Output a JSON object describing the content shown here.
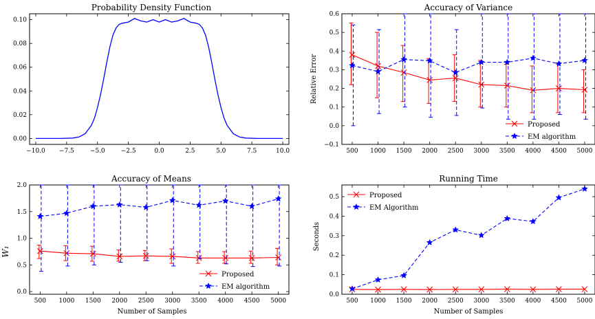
{
  "chart_data": [
    {
      "type": "line",
      "title": "Probability Density Function",
      "xlabel": "",
      "ylabel": "",
      "xlim": [
        -10.5,
        10.5
      ],
      "ylim": [
        -0.005,
        0.105
      ],
      "xticks": [
        -10.0,
        -7.5,
        -5.0,
        -2.5,
        0.0,
        2.5,
        5.0,
        7.5,
        10.0
      ],
      "xtick_labels": [
        "−10.0",
        "−7.5",
        "−5.0",
        "−2.5",
        "0.0",
        "2.5",
        "5.0",
        "7.5",
        "10.0"
      ],
      "yticks": [
        0.0,
        0.02,
        0.04,
        0.06,
        0.08,
        0.1
      ],
      "ytick_labels": [
        "0.00",
        "0.02",
        "0.04",
        "0.06",
        "0.08",
        "0.10"
      ],
      "grid": false,
      "series": [
        {
          "color": "#0000ff",
          "x": [
            -10.0,
            -8.0,
            -7.0,
            -6.5,
            -6.0,
            -5.5,
            -5.25,
            -5.0,
            -4.75,
            -4.5,
            -4.25,
            -4.0,
            -3.75,
            -3.5,
            -3.25,
            -3.0,
            -2.5,
            -2.0,
            -1.5,
            -1.0,
            -0.5,
            0.0,
            0.5,
            1.0,
            1.5,
            2.0,
            2.5,
            3.0,
            3.25,
            3.5,
            3.75,
            4.0,
            4.25,
            4.5,
            4.75,
            5.0,
            5.25,
            5.5,
            6.0,
            6.5,
            7.0,
            8.0,
            10.0
          ],
          "values": [
            0.0,
            0.0,
            0.0003,
            0.0012,
            0.004,
            0.011,
            0.017,
            0.026,
            0.037,
            0.05,
            0.064,
            0.077,
            0.087,
            0.093,
            0.096,
            0.097,
            0.098,
            0.101,
            0.099,
            0.098,
            0.1,
            0.098,
            0.1,
            0.098,
            0.099,
            0.101,
            0.098,
            0.097,
            0.096,
            0.093,
            0.087,
            0.077,
            0.064,
            0.05,
            0.037,
            0.026,
            0.017,
            0.011,
            0.004,
            0.0012,
            0.0003,
            0.0,
            0.0
          ]
        }
      ]
    },
    {
      "type": "line",
      "title": "Accuracy of Variance",
      "xlabel": "",
      "ylabel": "Relative Error",
      "categories": [
        500,
        1000,
        1500,
        2000,
        2500,
        3000,
        3500,
        4000,
        4500,
        5000
      ],
      "xlim": [
        300,
        5200
      ],
      "ylim": [
        -0.1,
        0.6
      ],
      "yticks": [
        -0.1,
        0.0,
        0.1,
        0.2,
        0.3,
        0.4,
        0.5,
        0.6
      ],
      "ytick_labels": [
        "−0.1",
        "0.0",
        "0.1",
        "0.2",
        "0.3",
        "0.4",
        "0.5",
        "0.6"
      ],
      "legend": "bottom-right",
      "grid": false,
      "series": [
        {
          "name": "Proposed",
          "color": "#ff0000",
          "values": [
            0.38,
            0.32,
            0.285,
            0.245,
            0.255,
            0.22,
            0.215,
            0.19,
            0.2,
            0.193
          ],
          "err_low": [
            0.22,
            0.15,
            0.13,
            0.12,
            0.13,
            0.1,
            0.1,
            0.07,
            0.07,
            0.07
          ],
          "err_high": [
            0.55,
            0.5,
            0.43,
            0.36,
            0.38,
            0.35,
            0.33,
            0.32,
            0.33,
            0.3
          ]
        },
        {
          "name": "EM algorithm",
          "color": "#0000ff",
          "values": [
            0.323,
            0.29,
            0.355,
            0.348,
            0.285,
            0.34,
            0.34,
            0.362,
            0.332,
            0.35
          ],
          "err_low": [
            0.0,
            0.065,
            0.1,
            0.045,
            0.055,
            0.095,
            0.035,
            0.035,
            0.06,
            0.035
          ],
          "err_high": [
            0.54,
            0.515,
            0.6,
            0.6,
            0.515,
            0.6,
            0.6,
            0.6,
            0.6,
            0.6
          ]
        }
      ]
    },
    {
      "type": "line",
      "title": "Accuracy of Means",
      "xlabel": "Number of Samples",
      "ylabel": "W₁",
      "categories": [
        500,
        1000,
        1500,
        2000,
        2500,
        3000,
        3500,
        4000,
        4500,
        5000
      ],
      "xlim": [
        300,
        5200
      ],
      "ylim": [
        -0.05,
        2.0
      ],
      "yticks": [
        0.0,
        0.5,
        1.0,
        1.5,
        2.0
      ],
      "ytick_labels": [
        "0.0",
        "0.5",
        "1.0",
        "1.5",
        "2.0"
      ],
      "legend": "bottom-right",
      "grid": false,
      "series": [
        {
          "name": "Proposed",
          "color": "#ff0000",
          "values": [
            0.76,
            0.72,
            0.71,
            0.66,
            0.67,
            0.66,
            0.63,
            0.63,
            0.63,
            0.64
          ],
          "err_low": [
            0.62,
            0.58,
            0.57,
            0.57,
            0.58,
            0.53,
            0.53,
            0.53,
            0.53,
            0.5
          ],
          "err_high": [
            0.87,
            0.86,
            0.85,
            0.78,
            0.77,
            0.8,
            0.75,
            0.75,
            0.76,
            0.81
          ]
        },
        {
          "name": "EM algorithm",
          "color": "#0000ff",
          "values": [
            1.41,
            1.47,
            1.6,
            1.63,
            1.58,
            1.71,
            1.62,
            1.7,
            1.6,
            1.74
          ],
          "err_low": [
            0.38,
            0.48,
            0.5,
            0.55,
            0.58,
            0.48,
            0.62,
            0.52,
            0.47,
            0.48
          ],
          "err_high": [
            2.0,
            2.0,
            2.0,
            2.0,
            2.0,
            2.0,
            2.0,
            2.0,
            2.0,
            2.0
          ]
        }
      ]
    },
    {
      "type": "line",
      "title": "Running Time",
      "xlabel": "Number of Samples",
      "ylabel": "Seconds",
      "categories": [
        500,
        1000,
        1500,
        2000,
        2500,
        3000,
        3500,
        4000,
        4500,
        5000
      ],
      "xlim": [
        300,
        5200
      ],
      "ylim": [
        0.0,
        0.56
      ],
      "yticks": [
        0.0,
        0.1,
        0.2,
        0.3,
        0.4,
        0.5
      ],
      "ytick_labels": [
        "0.0",
        "0.1",
        "0.2",
        "0.3",
        "0.4",
        "0.5"
      ],
      "legend": "top-left",
      "grid": false,
      "series": [
        {
          "name": "Proposed",
          "color": "#ff0000",
          "values": [
            0.025,
            0.024,
            0.025,
            0.024,
            0.025,
            0.025,
            0.026,
            0.025,
            0.026,
            0.026
          ]
        },
        {
          "name": "EM Algorithm",
          "color": "#0000ff",
          "values": [
            0.028,
            0.074,
            0.096,
            0.265,
            0.33,
            0.302,
            0.388,
            0.373,
            0.495,
            0.54
          ]
        }
      ]
    }
  ]
}
